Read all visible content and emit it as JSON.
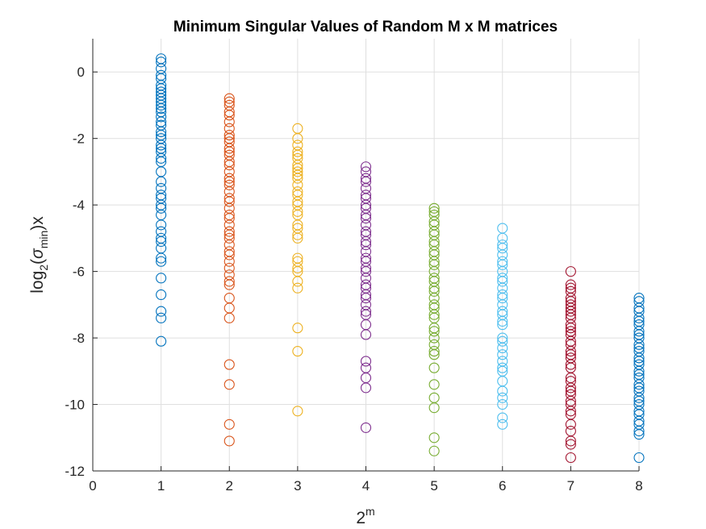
{
  "chart_data": {
    "type": "scatter",
    "title": "Minimum Singular Values of Random M x M matrices",
    "xlabel": {
      "base": "2",
      "sup": "m"
    },
    "ylabel": {
      "prefix": "log",
      "sub": "2",
      "open": "(",
      "sigma": "σ",
      "sigma_sub": "min",
      "close": ")x"
    },
    "xlim": [
      0,
      8
    ],
    "ylim": [
      -12,
      1
    ],
    "xticks": [
      0,
      1,
      2,
      3,
      4,
      5,
      6,
      7,
      8
    ],
    "yticks": [
      0,
      -2,
      -4,
      -6,
      -8,
      -10,
      -12
    ],
    "grid": true,
    "marker": "open-circle",
    "series": [
      {
        "x": 1,
        "color": "#0072BD",
        "values": [
          0.4,
          0.3,
          0.1,
          -0.1,
          -0.2,
          -0.4,
          -0.5,
          -0.6,
          -0.7,
          -0.8,
          -0.9,
          -1.0,
          -1.1,
          -1.2,
          -1.35,
          -1.5,
          -1.6,
          -1.8,
          -1.9,
          -2.0,
          -2.2,
          -2.3,
          -2.4,
          -2.6,
          -2.7,
          -3.0,
          -3.3,
          -3.5,
          -3.7,
          -3.8,
          -4.0,
          -4.1,
          -4.3,
          -4.6,
          -4.8,
          -5.0,
          -5.1,
          -5.3,
          -5.6,
          -5.7,
          -6.2,
          -6.7,
          -7.2,
          -7.4,
          -8.1
        ]
      },
      {
        "x": 2,
        "color": "#D95319",
        "values": [
          -0.8,
          -0.9,
          -1.0,
          -1.2,
          -1.3,
          -1.5,
          -1.7,
          -1.9,
          -2.0,
          -2.1,
          -2.3,
          -2.4,
          -2.5,
          -2.7,
          -2.8,
          -3.0,
          -3.2,
          -3.3,
          -3.4,
          -3.6,
          -3.8,
          -3.9,
          -4.1,
          -4.3,
          -4.4,
          -4.6,
          -4.8,
          -4.9,
          -5.0,
          -5.2,
          -5.4,
          -5.5,
          -5.7,
          -5.9,
          -6.1,
          -6.3,
          -6.4,
          -6.8,
          -7.1,
          -7.4,
          -8.8,
          -9.4,
          -10.6,
          -11.1
        ]
      },
      {
        "x": 3,
        "color": "#EDB120",
        "values": [
          -1.7,
          -2.0,
          -2.2,
          -2.4,
          -2.5,
          -2.6,
          -2.8,
          -2.9,
          -3.0,
          -3.1,
          -3.2,
          -3.4,
          -3.6,
          -3.7,
          -3.9,
          -4.0,
          -4.2,
          -4.3,
          -4.6,
          -4.7,
          -4.9,
          -5.0,
          -5.6,
          -5.7,
          -5.9,
          -6.0,
          -6.3,
          -6.5,
          -7.7,
          -8.4,
          -10.2
        ]
      },
      {
        "x": 4,
        "color": "#7E2F8E",
        "values": [
          -2.85,
          -3.0,
          -3.2,
          -3.3,
          -3.5,
          -3.7,
          -3.8,
          -4.0,
          -4.1,
          -4.3,
          -4.4,
          -4.6,
          -4.8,
          -4.9,
          -5.1,
          -5.2,
          -5.4,
          -5.6,
          -5.7,
          -5.9,
          -6.0,
          -6.2,
          -6.4,
          -6.5,
          -6.7,
          -6.8,
          -7.0,
          -7.2,
          -7.3,
          -7.6,
          -7.9,
          -8.7,
          -8.9,
          -9.2,
          -9.5,
          -10.7
        ]
      },
      {
        "x": 5,
        "color": "#77AC30",
        "values": [
          -4.1,
          -4.2,
          -4.3,
          -4.5,
          -4.6,
          -4.8,
          -4.9,
          -5.1,
          -5.2,
          -5.4,
          -5.5,
          -5.7,
          -5.8,
          -6.0,
          -6.2,
          -6.3,
          -6.5,
          -6.6,
          -6.8,
          -7.0,
          -7.1,
          -7.3,
          -7.4,
          -7.7,
          -7.8,
          -8.0,
          -8.2,
          -8.4,
          -8.5,
          -8.9,
          -9.4,
          -9.8,
          -10.1,
          -11.0,
          -11.4
        ]
      },
      {
        "x": 6,
        "color": "#4DBEEE",
        "values": [
          -4.7,
          -5.0,
          -5.2,
          -5.3,
          -5.5,
          -5.7,
          -5.8,
          -6.0,
          -6.2,
          -6.3,
          -6.5,
          -6.7,
          -6.8,
          -7.0,
          -7.2,
          -7.3,
          -7.5,
          -7.6,
          -8.0,
          -8.1,
          -8.3,
          -8.5,
          -8.7,
          -8.9,
          -9.0,
          -9.3,
          -9.6,
          -9.8,
          -10.0,
          -10.4,
          -10.6
        ]
      },
      {
        "x": 7,
        "color": "#A2142F",
        "values": [
          -6.0,
          -6.4,
          -6.5,
          -6.6,
          -6.8,
          -6.9,
          -7.0,
          -7.1,
          -7.2,
          -7.3,
          -7.4,
          -7.6,
          -7.7,
          -7.8,
          -7.9,
          -8.1,
          -8.2,
          -8.4,
          -8.5,
          -8.6,
          -8.8,
          -8.9,
          -9.2,
          -9.3,
          -9.5,
          -9.6,
          -9.7,
          -9.9,
          -10.0,
          -10.2,
          -10.3,
          -10.6,
          -10.8,
          -11.1,
          -11.2,
          -11.6
        ]
      },
      {
        "x": 8,
        "color": "#0072BD",
        "values": [
          -6.8,
          -6.9,
          -7.1,
          -7.2,
          -7.4,
          -7.5,
          -7.6,
          -7.8,
          -7.9,
          -8.0,
          -8.2,
          -8.3,
          -8.4,
          -8.6,
          -8.7,
          -8.8,
          -9.0,
          -9.1,
          -9.2,
          -9.4,
          -9.5,
          -9.6,
          -9.8,
          -9.9,
          -10.0,
          -10.2,
          -10.3,
          -10.5,
          -10.6,
          -10.8,
          -10.9,
          -11.6
        ]
      }
    ]
  }
}
